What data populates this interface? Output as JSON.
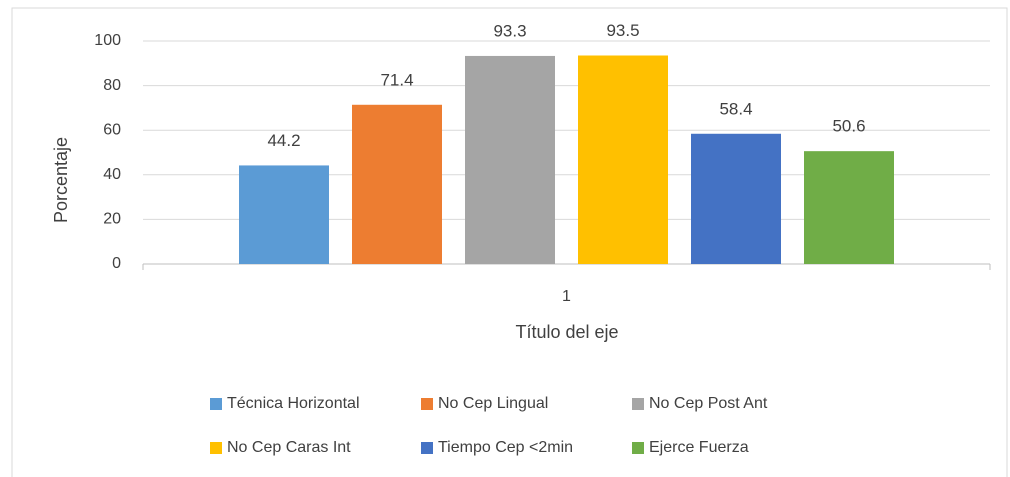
{
  "chart_data": {
    "type": "bar",
    "categories": [
      "1"
    ],
    "series": [
      {
        "name": "Técnica Horizontal",
        "color": "#5b9bd5",
        "values": [
          44.2
        ]
      },
      {
        "name": "No Cep Lingual",
        "color": "#ed7d31",
        "values": [
          71.4
        ]
      },
      {
        "name": "No Cep Post Ant",
        "color": "#a5a5a5",
        "values": [
          93.3
        ]
      },
      {
        "name": "No Cep Caras Int",
        "color": "#ffc000",
        "values": [
          93.5
        ]
      },
      {
        "name": "Tiempo Cep <2min",
        "color": "#4472c4",
        "values": [
          58.4
        ]
      },
      {
        "name": "Ejerce Fuerza",
        "color": "#70ad47",
        "values": [
          50.6
        ]
      }
    ],
    "xlabel": "Título del eje",
    "ylabel": "Porcentaje",
    "ylim": [
      0,
      100
    ],
    "yticks": [
      0,
      20,
      40,
      60,
      80,
      100
    ],
    "grid": true,
    "legend": "bottom"
  }
}
